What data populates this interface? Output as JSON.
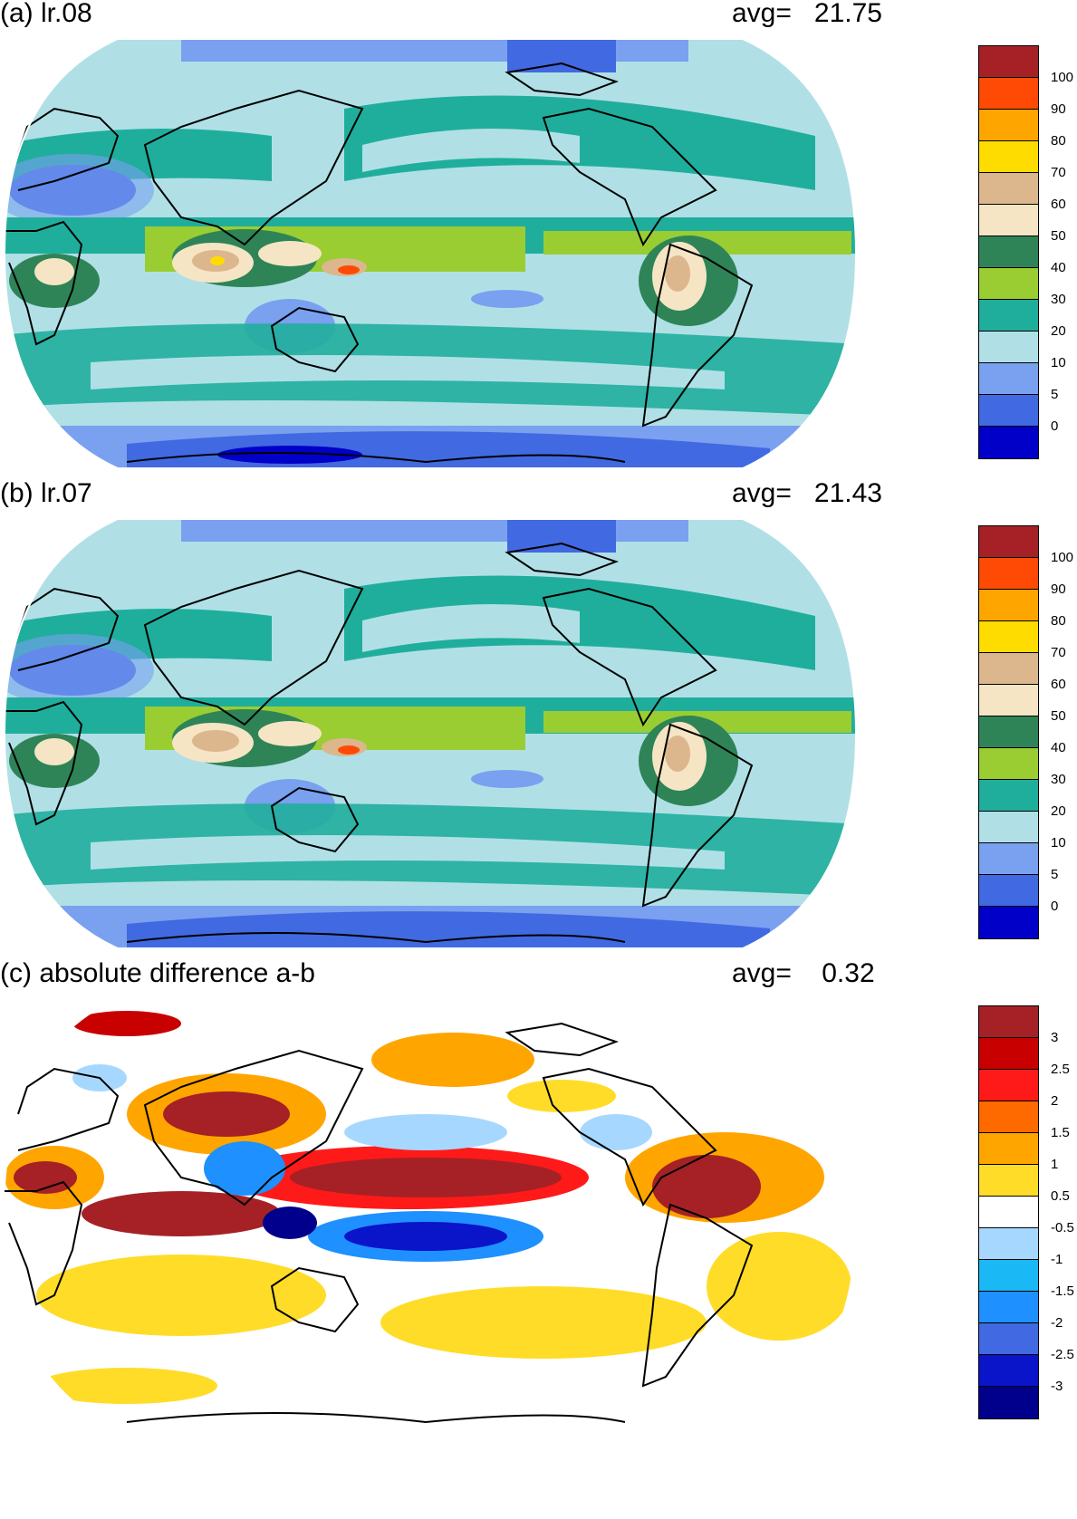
{
  "panels": [
    {
      "id": "a",
      "title": "(a) lr.08",
      "avg_label": "avg=",
      "avg_value": "21.75",
      "colorbar": {
        "colors": [
          "#a52126",
          "#ff4a05",
          "#ffa500",
          "#ffdc00",
          "#dcb68d",
          "#f5e5c4",
          "#2e8457",
          "#9acd32",
          "#20ae9c",
          "#b0e0e6",
          "#7aa0f0",
          "#4169e1",
          "#0000c8"
        ],
        "ticks": [
          "100",
          "90",
          "80",
          "70",
          "60",
          "50",
          "40",
          "30",
          "20",
          "10",
          "5",
          "0"
        ]
      }
    },
    {
      "id": "b",
      "title": "(b) lr.07",
      "avg_label": "avg=",
      "avg_value": "21.43",
      "colorbar": {
        "colors": [
          "#a52126",
          "#ff4a05",
          "#ffa500",
          "#ffdc00",
          "#dcb68d",
          "#f5e5c4",
          "#2e8457",
          "#9acd32",
          "#20ae9c",
          "#b0e0e6",
          "#7aa0f0",
          "#4169e1",
          "#0000c8"
        ],
        "ticks": [
          "100",
          "90",
          "80",
          "70",
          "60",
          "50",
          "40",
          "30",
          "20",
          "10",
          "5",
          "0"
        ]
      }
    },
    {
      "id": "c",
      "title": "(c) absolute difference a-b",
      "avg_label": "avg=",
      "avg_value": "0.32",
      "colorbar": {
        "colors": [
          "#a52126",
          "#c80000",
          "#ff1a1a",
          "#ff6a00",
          "#ffa500",
          "#ffdc28",
          "#ffffff",
          "#a6d8ff",
          "#1ab8f5",
          "#1e90ff",
          "#4169e1",
          "#0a14c8",
          "#00008c"
        ],
        "ticks": [
          "3",
          "2.5",
          "2",
          "1.5",
          "1",
          "0.5",
          "-0.5",
          "-1",
          "-1.5",
          "-2",
          "-2.5",
          "-3"
        ]
      }
    }
  ]
}
